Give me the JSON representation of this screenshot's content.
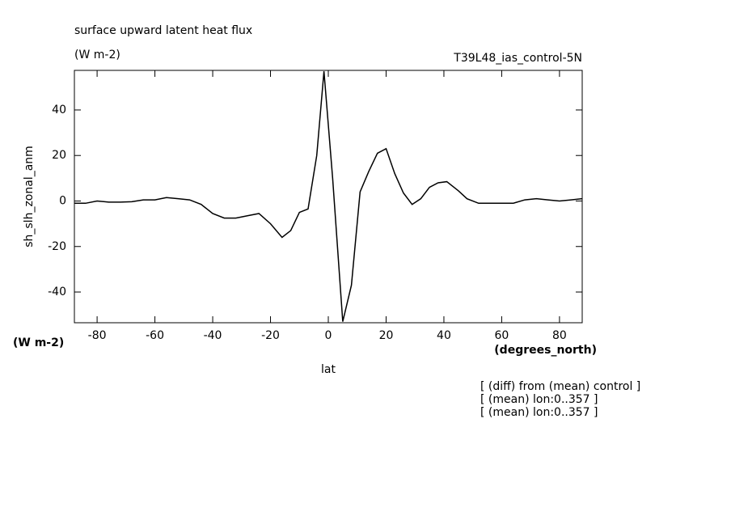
{
  "chart_data": {
    "type": "line",
    "title": "surface upward latent heat flux",
    "subtitle": "(W m-2)",
    "run_label": "T39L48_ias_control-5N",
    "y_label": "sh_slh_zonal_anm",
    "y_units": "(W m-2)",
    "x_units": "(degrees_north)",
    "x_label": "lat",
    "notes": [
      "[ (diff) from (mean) control ]",
      "[ (mean) lon:0..357 ]",
      "[ (mean) lon:0..357 ]"
    ],
    "x": [
      -87.86,
      -84,
      -80,
      -76,
      -72,
      -68,
      -64,
      -60,
      -56,
      -52,
      -48,
      -44,
      -40,
      -36,
      -32,
      -28,
      -24,
      -20,
      -16,
      -13,
      -10,
      -7,
      -4,
      -1.5,
      1.5,
      5,
      8,
      11,
      14,
      17,
      20,
      23,
      26,
      29,
      32,
      35,
      38,
      41,
      45,
      48,
      52,
      56,
      60,
      64,
      68,
      72,
      76,
      80,
      84,
      87.86
    ],
    "series": [
      {
        "color": "#000000",
        "values": [
          -1,
          -1,
          0,
          -0.5,
          -0.5,
          -0.3,
          0.5,
          0.5,
          1.5,
          1,
          0.5,
          -1.5,
          -5.5,
          -7.5,
          -7.5,
          -6.5,
          -5.5,
          -10,
          -16,
          -13,
          -5,
          -3.5,
          20,
          57,
          10,
          -53,
          -37,
          4,
          13,
          21,
          23,
          12,
          3.5,
          -1.5,
          1,
          6,
          8,
          8.5,
          4.5,
          1,
          -1,
          -1,
          -1,
          -1,
          0.5,
          1,
          0.5,
          0,
          0.5,
          1
        ]
      }
    ],
    "xlim": [
      -87.86,
      87.86
    ],
    "ylim": [
      -53.5,
      57.4
    ],
    "xticks": [
      -80,
      -60,
      -40,
      -20,
      0,
      20,
      40,
      60,
      80
    ],
    "yticks": [
      -40,
      -20,
      0,
      20,
      40
    ]
  }
}
